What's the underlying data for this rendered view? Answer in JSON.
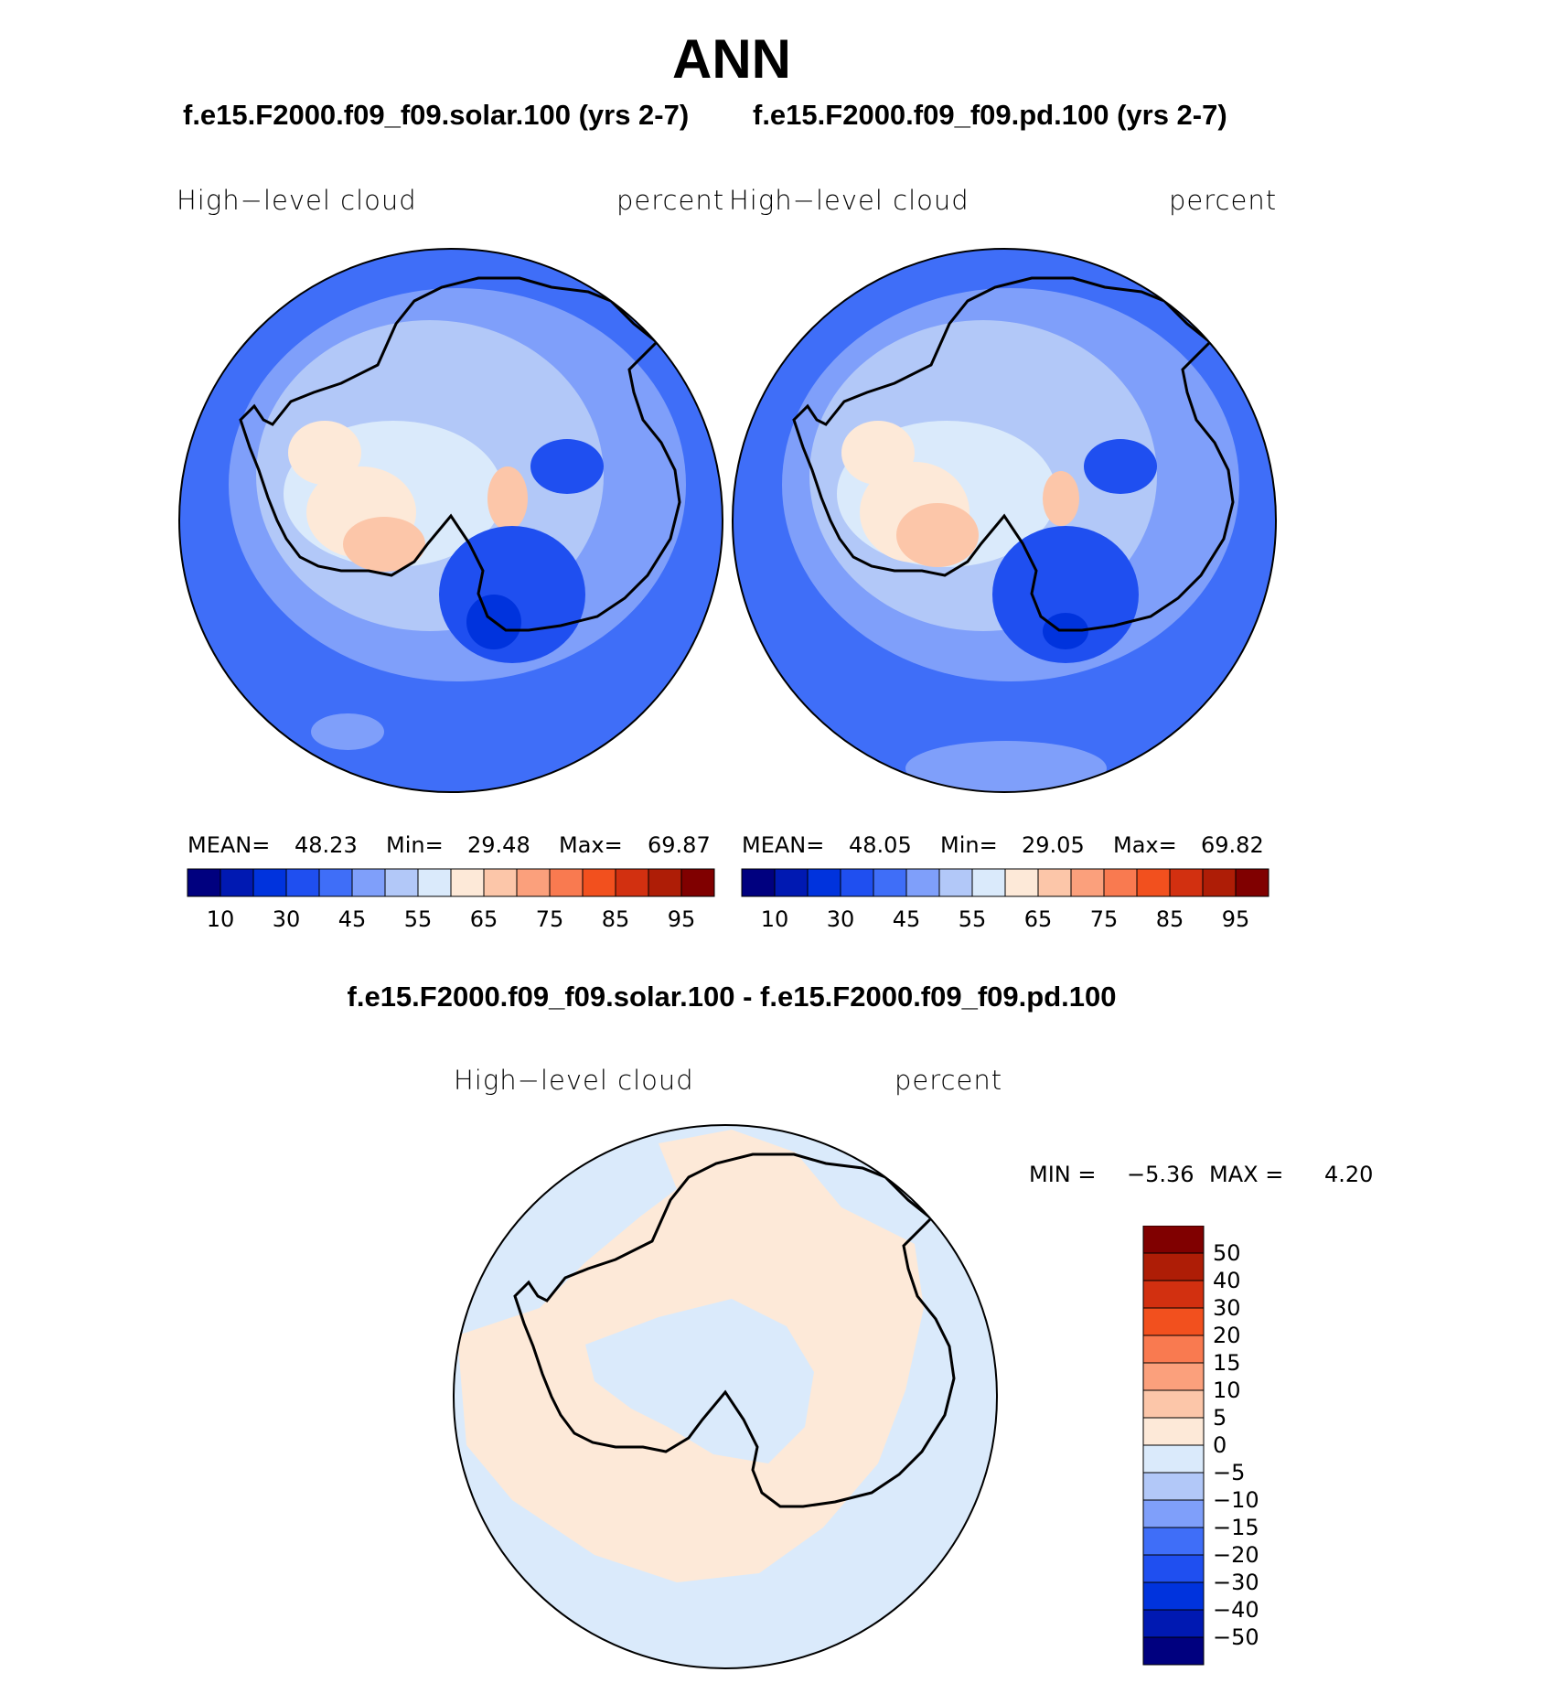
{
  "title": "ANN",
  "panels": [
    {
      "case_title": "f.e15.F2000.f09_f09.solar.100 (yrs 2-7)",
      "variable": "High−level cloud",
      "units": "percent",
      "stats": {
        "mean_label": "MEAN=",
        "mean": "48.23",
        "min_label": "Min=",
        "min": "29.48",
        "max_label": "Max=",
        "max": "69.87"
      }
    },
    {
      "case_title": "f.e15.F2000.f09_f09.pd.100 (yrs 2-7)",
      "variable": "High−level cloud",
      "units": "percent",
      "stats": {
        "mean_label": "MEAN=",
        "mean": "48.05",
        "min_label": "Min=",
        "min": "29.05",
        "max_label": "Max=",
        "max": "69.82"
      }
    }
  ],
  "abs_colorbar": {
    "colors": [
      "#00007f",
      "#0019b2",
      "#0033dd",
      "#1f4ff0",
      "#3f6ef8",
      "#7f9ffa",
      "#b2c8f8",
      "#daeafb",
      "#fde9d8",
      "#fcc6a9",
      "#fba07c",
      "#f97a50",
      "#f2501e",
      "#d23010",
      "#ae1d06",
      "#800000"
    ],
    "tick_labels": [
      "10",
      "30",
      "45",
      "55",
      "65",
      "75",
      "85",
      "95"
    ]
  },
  "difference": {
    "title": "f.e15.F2000.f09_f09.solar.100 - f.e15.F2000.f09_f09.pd.100",
    "variable": "High−level cloud",
    "units": "percent",
    "min_label": "MIN =",
    "min": "−5.36",
    "max_label": "MAX =",
    "max": "4.20"
  },
  "diff_colorbar": {
    "colors_top_to_bottom": [
      "#800000",
      "#ae1d06",
      "#d23010",
      "#f2501e",
      "#f97a50",
      "#fba07c",
      "#fcc6a9",
      "#fde9d8",
      "#daeafb",
      "#b2c8f8",
      "#7f9ffa",
      "#3f6ef8",
      "#1f4ff0",
      "#0033dd",
      "#0019b2",
      "#00007f"
    ],
    "tick_labels": [
      "50",
      "40",
      "30",
      "20",
      "15",
      "10",
      "5",
      "0",
      "−5",
      "−10",
      "−15",
      "−20",
      "−30",
      "−40",
      "−50"
    ]
  },
  "map_colors": {
    "ocean_outer": "#3f6ef8",
    "mid": "#7f9ffa",
    "light": "#b2c8f8",
    "lightest": "#daeafb",
    "warm1": "#fde9d8",
    "warm2": "#fcc6a9",
    "deep1": "#1f4ff0",
    "deep2": "#0033dd",
    "diff_pos": "#fde9d8",
    "diff_neg": "#daeafb"
  }
}
